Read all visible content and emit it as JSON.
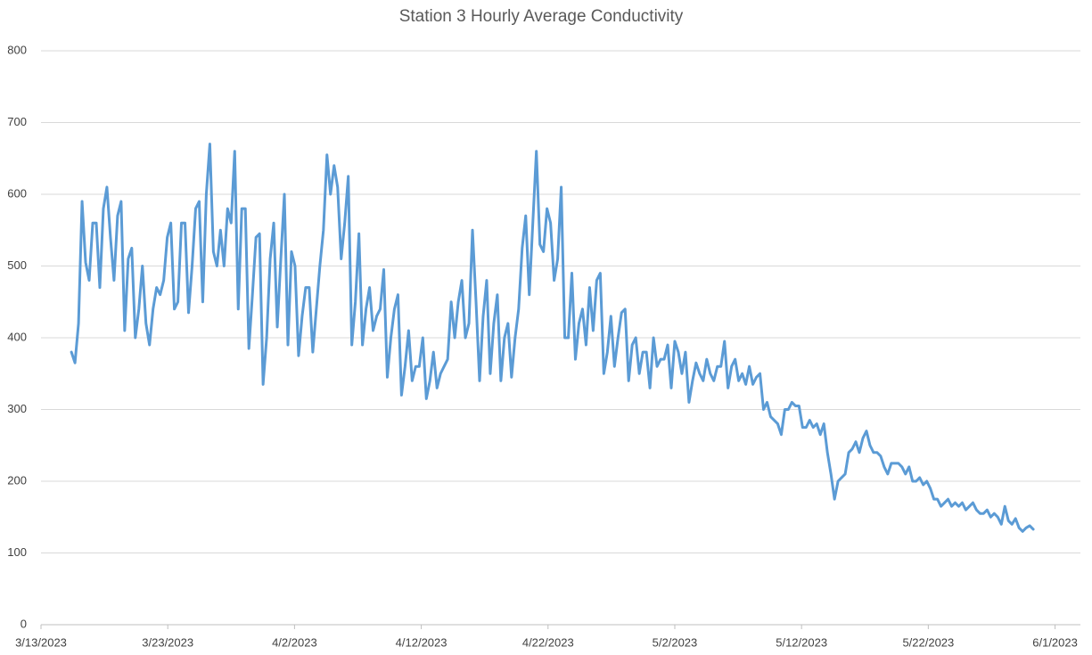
{
  "chart_data": {
    "type": "line",
    "title": "Station 3 Hourly Average Conductivity",
    "color": "#5b9bd5",
    "grid": true,
    "xlim": [
      44998,
      45080
    ],
    "ylim": [
      0,
      800
    ],
    "yticks": [
      0,
      100,
      200,
      300,
      400,
      500,
      600,
      700,
      800
    ],
    "xticks": [
      {
        "value": 44998,
        "label": "3/13/2023"
      },
      {
        "value": 45008,
        "label": "3/23/2023"
      },
      {
        "value": 45018,
        "label": "4/2/2023"
      },
      {
        "value": 45028,
        "label": "4/12/2023"
      },
      {
        "value": 45038,
        "label": "4/22/2023"
      },
      {
        "value": 45048,
        "label": "5/2/2023"
      },
      {
        "value": 45058,
        "label": "5/12/2023"
      },
      {
        "value": 45068,
        "label": "5/22/2023"
      },
      {
        "value": 45078,
        "label": "6/1/2023"
      }
    ],
    "x": [
      45000.4,
      45000.68,
      45000.96,
      45001.24,
      45001.52,
      45001.8,
      45002.08,
      45002.36,
      45002.64,
      45002.92,
      45003.2,
      45003.48,
      45003.76,
      45004.04,
      45004.32,
      45004.6,
      45004.88,
      45005.16,
      45005.44,
      45005.72,
      45006.0,
      45006.28,
      45006.56,
      45006.84,
      45007.12,
      45007.4,
      45007.68,
      45007.96,
      45008.24,
      45008.52,
      45008.8,
      45009.08,
      45009.36,
      45009.64,
      45009.92,
      45010.2,
      45010.48,
      45010.76,
      45011.04,
      45011.32,
      45011.6,
      45011.88,
      45012.16,
      45012.44,
      45012.72,
      45013.0,
      45013.28,
      45013.56,
      45013.84,
      45014.12,
      45014.4,
      45014.68,
      45014.96,
      45015.24,
      45015.52,
      45015.8,
      45016.08,
      45016.36,
      45016.64,
      45016.92,
      45017.2,
      45017.48,
      45017.76,
      45018.04,
      45018.32,
      45018.6,
      45018.88,
      45019.16,
      45019.44,
      45019.72,
      45020.0,
      45020.28,
      45020.56,
      45020.84,
      45021.12,
      45021.4,
      45021.68,
      45021.96,
      45022.24,
      45022.52,
      45022.8,
      45023.08,
      45023.36,
      45023.64,
      45023.92,
      45024.2,
      45024.48,
      45024.76,
      45025.04,
      45025.32,
      45025.6,
      45025.88,
      45026.16,
      45026.44,
      45026.72,
      45027.0,
      45027.28,
      45027.56,
      45027.84,
      45028.12,
      45028.4,
      45028.68,
      45028.96,
      45029.24,
      45029.52,
      45029.8,
      45030.08,
      45030.36,
      45030.64,
      45030.92,
      45031.2,
      45031.48,
      45031.76,
      45032.04,
      45032.32,
      45032.6,
      45032.88,
      45033.16,
      45033.44,
      45033.72,
      45034.0,
      45034.28,
      45034.56,
      45034.84,
      45035.12,
      45035.4,
      45035.68,
      45035.96,
      45036.24,
      45036.52,
      45036.8,
      45037.08,
      45037.36,
      45037.64,
      45037.92,
      45038.2,
      45038.48,
      45038.76,
      45039.04,
      45039.32,
      45039.6,
      45039.88,
      45040.16,
      45040.44,
      45040.72,
      45041.0,
      45041.28,
      45041.56,
      45041.84,
      45042.12,
      45042.4,
      45042.68,
      45042.96,
      45043.24,
      45043.52,
      45043.8,
      45044.08,
      45044.36,
      45044.64,
      45044.92,
      45045.2,
      45045.48,
      45045.76,
      45046.04,
      45046.32,
      45046.6,
      45046.88,
      45047.16,
      45047.44,
      45047.72,
      45048.0,
      45048.28,
      45048.56,
      45048.84,
      45049.12,
      45049.4,
      45049.68,
      45049.96,
      45050.24,
      45050.52,
      45050.8,
      45051.08,
      45051.36,
      45051.64,
      45051.92,
      45052.2,
      45052.48,
      45052.76,
      45053.04,
      45053.32,
      45053.6,
      45053.88,
      45054.16,
      45054.44,
      45054.72,
      45055.0,
      45055.28,
      45055.56,
      45055.84,
      45056.12,
      45056.4,
      45056.68,
      45056.96,
      45057.24,
      45057.52,
      45057.8,
      45058.08,
      45058.36,
      45058.64,
      45058.92,
      45059.2,
      45059.48,
      45059.76,
      45060.04,
      45060.32,
      45060.6,
      45060.88,
      45061.16,
      45061.44,
      45061.72,
      45062.0,
      45062.28,
      45062.56,
      45062.84,
      45063.12,
      45063.4,
      45063.68,
      45063.96,
      45064.24,
      45064.52,
      45064.8,
      45065.08,
      45065.36,
      45065.64,
      45065.92,
      45066.2,
      45066.48,
      45066.76,
      45067.04,
      45067.32,
      45067.6,
      45067.88,
      45068.16,
      45068.44,
      45068.72,
      45069.0,
      45069.28,
      45069.56,
      45069.84,
      45070.12,
      45070.4,
      45070.68,
      45070.96,
      45071.24,
      45071.52,
      45071.8,
      45072.08,
      45072.36,
      45072.64,
      45072.92,
      45073.2,
      45073.48,
      45073.76,
      45074.04,
      45074.32,
      45074.6,
      45074.88,
      45075.16,
      45075.44,
      45075.72,
      45076.0,
      45076.28
    ],
    "values": [
      380,
      365,
      420,
      590,
      505,
      480,
      560,
      560,
      470,
      580,
      610,
      540,
      480,
      570,
      590,
      410,
      510,
      525,
      400,
      440,
      500,
      420,
      390,
      440,
      470,
      460,
      480,
      540,
      560,
      440,
      450,
      560,
      560,
      435,
      500,
      580,
      590,
      450,
      600,
      670,
      520,
      500,
      550,
      500,
      580,
      560,
      660,
      440,
      580,
      580,
      385,
      460,
      540,
      545,
      335,
      400,
      510,
      560,
      415,
      510,
      600,
      390,
      520,
      500,
      375,
      430,
      470,
      470,
      380,
      440,
      500,
      550,
      655,
      600,
      640,
      610,
      510,
      560,
      625,
      390,
      450,
      545,
      390,
      440,
      470,
      410,
      430,
      440,
      495,
      345,
      400,
      440,
      460,
      320,
      360,
      410,
      340,
      360,
      360,
      400,
      315,
      340,
      380,
      330,
      350,
      360,
      370,
      450,
      400,
      450,
      480,
      400,
      420,
      550,
      450,
      340,
      430,
      480,
      350,
      420,
      460,
      340,
      400,
      420,
      345,
      400,
      440,
      525,
      570,
      460,
      560,
      660,
      530,
      520,
      580,
      560,
      480,
      510,
      610,
      400,
      400,
      490,
      370,
      420,
      440,
      390,
      470,
      410,
      480,
      490,
      350,
      380,
      430,
      360,
      400,
      435,
      440,
      340,
      390,
      400,
      350,
      380,
      380,
      330,
      400,
      360,
      370,
      370,
      390,
      330,
      395,
      380,
      350,
      380,
      310,
      340,
      365,
      350,
      340,
      370,
      350,
      340,
      360,
      360,
      395,
      330,
      360,
      370,
      340,
      350,
      335,
      360,
      335,
      345,
      350,
      300,
      310,
      290,
      285,
      280,
      265,
      300,
      300,
      310,
      305,
      305,
      275,
      275,
      285,
      275,
      280,
      265,
      280,
      240,
      210,
      175,
      200,
      205,
      210,
      240,
      245,
      255,
      240,
      260,
      270,
      250,
      240,
      240,
      235,
      220,
      210,
      225,
      225,
      225,
      220,
      210,
      220,
      200,
      200,
      205,
      195,
      200,
      190,
      175,
      175,
      165,
      170,
      175,
      165,
      170,
      165,
      170,
      160,
      165,
      170,
      160,
      155,
      155,
      160,
      150,
      155,
      150,
      140,
      165,
      145,
      140,
      148,
      135,
      130,
      135,
      138,
      133
    ]
  }
}
